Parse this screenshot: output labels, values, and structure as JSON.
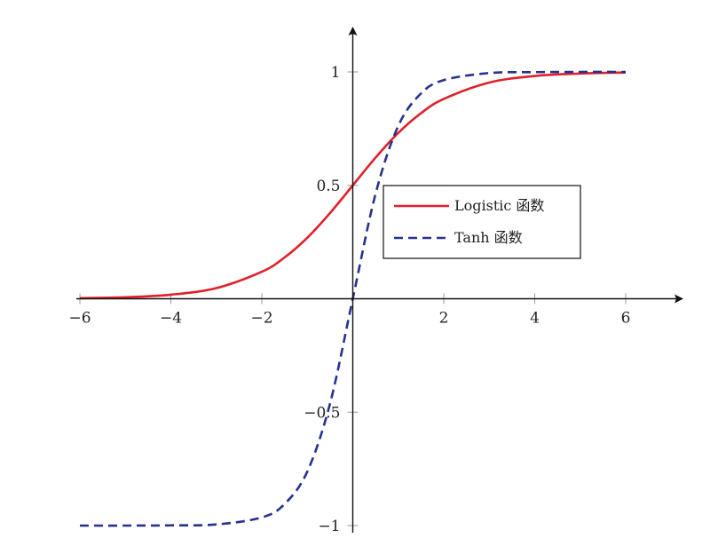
{
  "chart_data": {
    "type": "line",
    "title": "",
    "xlabel": "",
    "ylabel": "",
    "xlim": [
      -6,
      6
    ],
    "ylim": [
      -1,
      1
    ],
    "grid": false,
    "legend_position": "center-right",
    "x_ticks": [
      {
        "value": -6,
        "label": "−6"
      },
      {
        "value": -4,
        "label": "−4"
      },
      {
        "value": -2,
        "label": "−2"
      },
      {
        "value": 2,
        "label": "2"
      },
      {
        "value": 4,
        "label": "4"
      },
      {
        "value": 6,
        "label": "6"
      }
    ],
    "y_ticks": [
      {
        "value": -1,
        "label": "−1"
      },
      {
        "value": -0.5,
        "label": "−0.5"
      },
      {
        "value": 0.5,
        "label": "0.5"
      },
      {
        "value": 1,
        "label": "1"
      }
    ],
    "x": [
      -6,
      -5,
      -4,
      -3,
      -2,
      -1.5,
      -1,
      -0.5,
      0,
      0.5,
      1,
      1.5,
      2,
      3,
      4,
      5,
      6
    ],
    "series": [
      {
        "name": "Logistic 函数",
        "color": "#e0202a",
        "dash": "solid",
        "values": [
          0.0025,
          0.0067,
          0.018,
          0.047,
          0.119,
          0.182,
          0.269,
          0.378,
          0.5,
          0.622,
          0.731,
          0.818,
          0.881,
          0.953,
          0.982,
          0.993,
          0.9975
        ]
      },
      {
        "name": "Tanh 函数",
        "color": "#27318f",
        "dash": "dashed",
        "values": [
          -1.0,
          -1.0,
          -0.999,
          -0.995,
          -0.964,
          -0.905,
          -0.762,
          -0.462,
          0,
          0.462,
          0.762,
          0.905,
          0.964,
          0.995,
          0.999,
          1.0,
          1.0
        ]
      }
    ]
  }
}
